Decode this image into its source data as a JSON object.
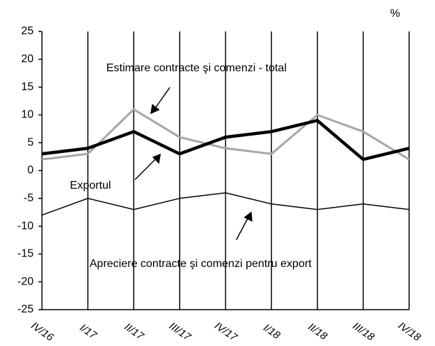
{
  "chart_data": {
    "type": "line",
    "unit": "%",
    "categories": [
      "IV/16",
      "I/17",
      "II/17",
      "III/17",
      "IV/17",
      "I/18",
      "II/18",
      "III/18",
      "IV/18"
    ],
    "series": [
      {
        "name": "Estimare contracte şi comenzi - total",
        "color": "#a6a6a6",
        "values": [
          2,
          3,
          11,
          6,
          4,
          3,
          10,
          7,
          2
        ]
      },
      {
        "name": "Exportul",
        "color": "#000000",
        "values": [
          3,
          4,
          7,
          3,
          6,
          7,
          9,
          2,
          4
        ]
      },
      {
        "name": "Apreciere contracte şi comenzi pentru export",
        "color": "#000000",
        "values": [
          -8,
          -5,
          -7,
          -5,
          -4,
          -6,
          -7,
          -6,
          -7
        ]
      }
    ],
    "ylim": [
      -25,
      25
    ],
    "yticks": [
      -25,
      -20,
      -15,
      -10,
      -5,
      0,
      5,
      10,
      15,
      20,
      25
    ],
    "vertical_grid": true
  }
}
